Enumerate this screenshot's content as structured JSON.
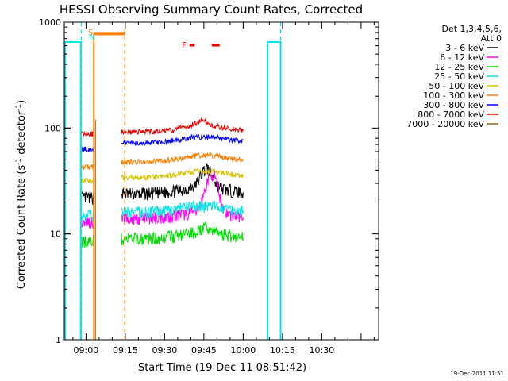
{
  "chart_data": {
    "type": "line",
    "title": "HESSI Observing Summary Count Rates, Corrected",
    "ylabel_main": "Corrected Count Rate (s",
    "ylabel_sup1": "-1",
    "ylabel_mid": " detector",
    "ylabel_sup2": "-1",
    "ylabel_end": ")",
    "xlabel": "Start Time (19-Dec-11 08:51:42)",
    "date_stamp": "19-Dec-2011 11:51",
    "y_scale": "log",
    "ylim": [
      1,
      1000
    ],
    "y_ticks": [
      {
        "value": 1,
        "label": "1"
      },
      {
        "value": 10,
        "label": "10"
      },
      {
        "value": 100,
        "label": "100"
      },
      {
        "value": 1000,
        "label": "1000"
      }
    ],
    "xlim_minutes": [
      51.7,
      171.7
    ],
    "x_ticks": [
      {
        "minute": 60,
        "label": "09:00"
      },
      {
        "minute": 75,
        "label": "09:15"
      },
      {
        "minute": 90,
        "label": "09:30"
      },
      {
        "minute": 105,
        "label": "09:45"
      },
      {
        "minute": 120,
        "label": "10:00"
      },
      {
        "minute": 135,
        "label": "10:15"
      },
      {
        "minute": 150,
        "label": "10:30"
      }
    ],
    "legend": {
      "placement": "right",
      "header_line1": "Det 1,3,4,5,6,",
      "header_line2": "Att 0",
      "entries": [
        {
          "label": "3 - 6 keV",
          "color": "#000000"
        },
        {
          "label": "6 - 12 keV",
          "color": "#ff00ff"
        },
        {
          "label": "12 - 25 keV",
          "color": "#00dd00"
        },
        {
          "label": "25 - 50 keV",
          "color": "#00e5e5"
        },
        {
          "label": "50 - 100 keV",
          "color": "#d4c400"
        },
        {
          "label": "100 - 300 keV",
          "color": "#ff7f00"
        },
        {
          "label": "300 - 800 keV",
          "color": "#0000ff"
        },
        {
          "label": "800 - 7000 keV",
          "color": "#ee0000"
        },
        {
          "label": "7000 - 20000 keV",
          "color": "#8b6914"
        }
      ]
    },
    "series": [
      {
        "color": "#000000",
        "segments": [
          [
            58,
            63,
            22
          ],
          [
            73.5,
            120,
            24
          ]
        ],
        "bump": {
          "at": 106,
          "height": 1.5
        }
      },
      {
        "color": "#ff00ff",
        "segments": [
          [
            58,
            63,
            13
          ],
          [
            73.5,
            120,
            14
          ]
        ],
        "bump": {
          "at": 108,
          "height": 2.3
        }
      },
      {
        "color": "#00dd00",
        "segments": [
          [
            58,
            63,
            8.5
          ],
          [
            73.5,
            120,
            9
          ]
        ],
        "bump": {
          "at": 106,
          "height": 1.1
        }
      },
      {
        "color": "#00e5e5",
        "segments": [
          [
            58,
            63,
            15
          ],
          [
            73.5,
            120,
            16
          ]
        ]
      },
      {
        "color": "#d4c400",
        "segments": [
          [
            58,
            63,
            32
          ],
          [
            73.5,
            120,
            34
          ]
        ]
      },
      {
        "color": "#ff7f00",
        "segments": [
          [
            58,
            63,
            43
          ],
          [
            73.5,
            120,
            48
          ]
        ]
      },
      {
        "color": "#0000ff",
        "segments": [
          [
            58,
            63,
            63
          ],
          [
            73.5,
            120,
            72
          ]
        ]
      },
      {
        "color": "#ee0000",
        "segments": [
          [
            58,
            63,
            88
          ],
          [
            73.5,
            120,
            92
          ]
        ],
        "bump": {
          "at": 104,
          "height": 1.1
        }
      }
    ],
    "attenuator_level": 650,
    "attenuator_segments": [
      [
        51.7,
        58
      ],
      [
        129,
        134.3
      ]
    ],
    "saa_dashed_lines": [
      {
        "minute": 58.2,
        "color": "#00e5e5"
      },
      {
        "minute": 134.3,
        "color": "#00e5e5"
      }
    ],
    "night_dashed_lines": [
      {
        "minute": 74.8,
        "color": "#ff7f00"
      }
    ],
    "orange_bar": {
      "start": 63,
      "end": 74.8,
      "level": 780
    },
    "flags": [
      {
        "text": "S",
        "color": "#ff7f00",
        "minute": 61.7
      },
      {
        "text": "N",
        "color": "#00e5e5",
        "minute": 62.3
      },
      {
        "text": "F",
        "color": "#ee0000",
        "minute": 97.5
      }
    ],
    "flare_bars": [
      {
        "start": 99.5,
        "end": 101.5
      },
      {
        "start": 108,
        "end": 111
      }
    ]
  }
}
